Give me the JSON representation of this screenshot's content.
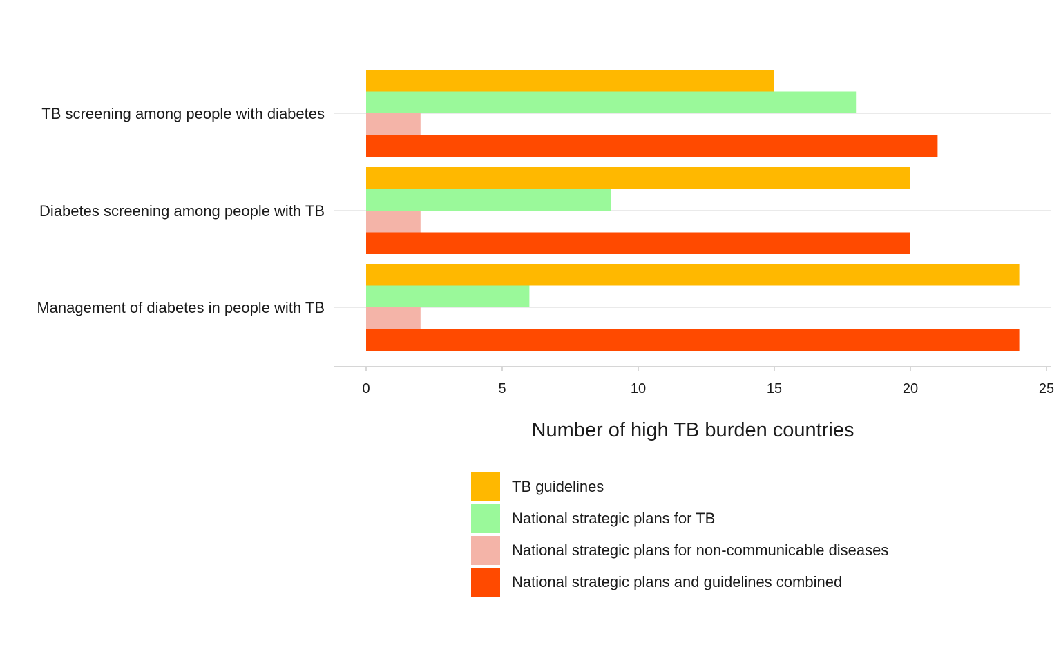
{
  "chart_data": {
    "type": "bar",
    "orientation": "horizontal",
    "categories": [
      "TB screening among people with diabetes",
      "Diabetes screening among people with TB",
      "Management of diabetes in people with TB"
    ],
    "series": [
      {
        "name": "TB guidelines",
        "color": "#FFB800",
        "values": [
          15,
          20,
          24
        ]
      },
      {
        "name": "National strategic plans for TB",
        "color": "#9AF99A",
        "values": [
          18,
          9,
          6
        ]
      },
      {
        "name": "National strategic plans for non-communicable diseases",
        "color": "#F4B4A8",
        "values": [
          2,
          2,
          2
        ]
      },
      {
        "name": "National strategic plans and guidelines combined",
        "color": "#FF4A00",
        "values": [
          21,
          20,
          24
        ]
      }
    ],
    "xlabel": "Number of high TB burden countries",
    "xlim": [
      0,
      25
    ],
    "xticks": [
      "0",
      "5",
      "10",
      "15",
      "20",
      "25"
    ],
    "grid": "horizontal category lines",
    "legend_position": "bottom"
  }
}
